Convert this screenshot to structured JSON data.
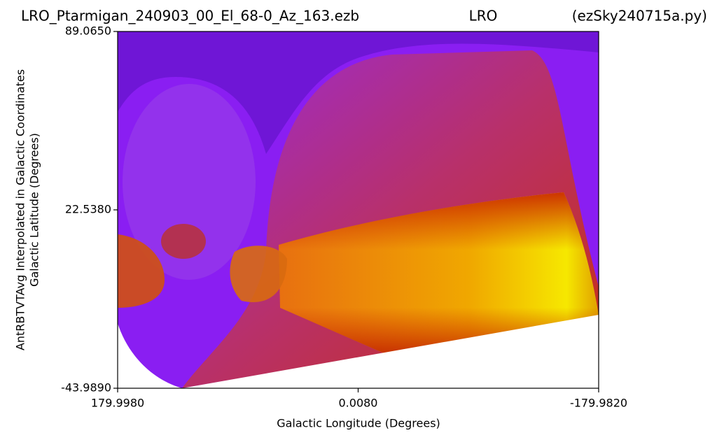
{
  "chart_data": {
    "type": "heatmap",
    "title": "LRO_Ptarmigan_240903_00_El_68-0_Az_163.ezb",
    "title_center": "LRO",
    "title_right": "(ezSky240715a.py)",
    "x_label": "Galactic Longitude (Degrees)",
    "y_label": [
      "AntRBTVTAvg Interpolated in Galactic Coordinates",
      "Galactic Latitude (Degrees)"
    ],
    "xlim": [
      179.998,
      -179.982
    ],
    "xticks": [
      {
        "value": 179.998,
        "label": "179.9980"
      },
      {
        "value": 0.008,
        "label": "0.0080"
      },
      {
        "value": -179.982,
        "label": "-179.9820"
      }
    ],
    "ylim": [
      -43.989,
      89.065
    ],
    "yticks": [
      {
        "value": -43.989,
        "label": "-43.9890"
      },
      {
        "value": 22.538,
        "label": "22.5380"
      },
      {
        "value": 89.065,
        "label": "89.0650"
      }
    ]
  }
}
